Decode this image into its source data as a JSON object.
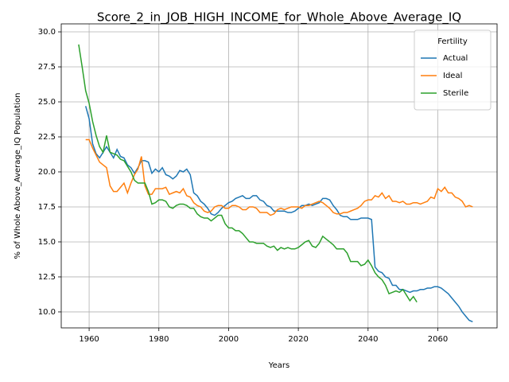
{
  "chart_data": {
    "type": "line",
    "title": "Score_2_in_JOB_HIGH_INCOME_for_Whole_Above_Average_IQ",
    "xlabel": "Years",
    "ylabel": "% of Whole Above_Average_IQ Population",
    "legend_title": "Fertility",
    "legend": "upper right",
    "grid": true,
    "x": [
      1957,
      1958,
      1959,
      1960,
      1961,
      1962,
      1963,
      1964,
      1965,
      1966,
      1967,
      1968,
      1969,
      1970,
      1971,
      1972,
      1973,
      1974,
      1975,
      1976,
      1977,
      1978,
      1979,
      1980,
      1981,
      1982,
      1983,
      1984,
      1985,
      1986,
      1987,
      1988,
      1989,
      1990,
      1991,
      1992,
      1993,
      1994,
      1995,
      1996,
      1997,
      1998,
      1999,
      2000,
      2001,
      2002,
      2003,
      2004,
      2005,
      2006,
      2007,
      2008,
      2009,
      2010,
      2011,
      2012,
      2013,
      2014,
      2015,
      2016,
      2017,
      2018,
      2019,
      2020,
      2021,
      2022,
      2023,
      2024,
      2025,
      2026,
      2027,
      2028,
      2029,
      2030,
      2031,
      2032,
      2033,
      2034,
      2035,
      2036,
      2037,
      2038,
      2039,
      2040,
      2041,
      2042,
      2043,
      2044,
      2045,
      2046,
      2047,
      2048,
      2049,
      2050,
      2051,
      2052,
      2053,
      2054,
      2055,
      2056,
      2057,
      2058,
      2059,
      2060,
      2061,
      2062,
      2063,
      2064,
      2065,
      2066,
      2067,
      2068,
      2069,
      2070
    ],
    "series": [
      {
        "name": "Actual",
        "color": "#1f77b4",
        "values": [
          null,
          null,
          24.7,
          23.8,
          22.0,
          21.3,
          21.0,
          21.4,
          21.8,
          21.4,
          21.0,
          21.6,
          21.1,
          21.0,
          20.5,
          20.3,
          19.9,
          20.3,
          20.8,
          20.8,
          20.7,
          19.9,
          20.2,
          20.0,
          20.3,
          19.8,
          19.7,
          19.5,
          19.7,
          20.1,
          20.0,
          20.2,
          19.8,
          18.5,
          18.3,
          17.9,
          17.7,
          17.4,
          17.0,
          16.9,
          17.1,
          17.4,
          17.6,
          17.8,
          17.9,
          18.1,
          18.2,
          18.3,
          18.1,
          18.1,
          18.3,
          18.3,
          18.0,
          17.9,
          17.6,
          17.5,
          17.2,
          17.2,
          17.2,
          17.2,
          17.1,
          17.1,
          17.2,
          17.4,
          17.6,
          17.6,
          17.7,
          17.6,
          17.7,
          17.8,
          18.1,
          18.1,
          18.0,
          17.6,
          17.3,
          16.9,
          16.8,
          16.8,
          16.6,
          16.6,
          16.6,
          16.7,
          16.7,
          16.7,
          16.6,
          13.2,
          12.9,
          12.8,
          12.5,
          12.4,
          11.9,
          11.9,
          11.6,
          11.6,
          11.5,
          11.4,
          11.5,
          11.5,
          11.6,
          11.6,
          11.7,
          11.7,
          11.8,
          11.8,
          11.7,
          11.5,
          11.3,
          11.0,
          10.7,
          10.4,
          10.0,
          9.7,
          9.4,
          9.3
        ]
      },
      {
        "name": "Ideal",
        "color": "#ff7f0e",
        "values": [
          null,
          null,
          22.3,
          22.3,
          21.7,
          21.2,
          20.7,
          20.5,
          20.3,
          19.0,
          18.6,
          18.6,
          18.9,
          19.2,
          18.5,
          19.2,
          19.8,
          20.2,
          21.1,
          19.0,
          18.4,
          18.4,
          18.8,
          18.8,
          18.8,
          18.9,
          18.4,
          18.5,
          18.6,
          18.5,
          18.8,
          18.3,
          18.2,
          17.8,
          17.6,
          17.5,
          17.2,
          17.1,
          17.2,
          17.5,
          17.6,
          17.6,
          17.4,
          17.4,
          17.6,
          17.6,
          17.5,
          17.3,
          17.3,
          17.5,
          17.5,
          17.4,
          17.1,
          17.1,
          17.1,
          16.9,
          17.0,
          17.3,
          17.4,
          17.3,
          17.4,
          17.5,
          17.5,
          17.5,
          17.4,
          17.6,
          17.6,
          17.7,
          17.8,
          17.9,
          17.8,
          17.6,
          17.4,
          17.1,
          17.0,
          17.0,
          17.1,
          17.1,
          17.2,
          17.3,
          17.4,
          17.6,
          17.9,
          18.0,
          18.0,
          18.3,
          18.2,
          18.5,
          18.1,
          18.3,
          17.9,
          17.9,
          17.8,
          17.9,
          17.7,
          17.7,
          17.8,
          17.8,
          17.7,
          17.8,
          17.9,
          18.2,
          18.1,
          18.8,
          18.6,
          18.9,
          18.5,
          18.5,
          18.2,
          18.1,
          17.9,
          17.5,
          17.6,
          17.5
        ]
      },
      {
        "name": "Sterile",
        "color": "#2ca02c",
        "values": [
          29.1,
          27.5,
          25.8,
          24.9,
          23.6,
          22.6,
          21.8,
          21.4,
          22.6,
          21.4,
          21.3,
          21.2,
          20.9,
          20.8,
          20.4,
          20.0,
          19.4,
          19.2,
          19.2,
          19.2,
          18.6,
          17.7,
          17.8,
          18.0,
          18.0,
          17.9,
          17.5,
          17.4,
          17.6,
          17.7,
          17.7,
          17.6,
          17.4,
          17.4,
          17.0,
          16.8,
          16.7,
          16.7,
          16.5,
          16.7,
          16.9,
          16.9,
          16.3,
          16.0,
          16.0,
          15.8,
          15.8,
          15.6,
          15.3,
          15.0,
          15.0,
          14.9,
          14.9,
          14.9,
          14.7,
          14.6,
          14.7,
          14.4,
          14.6,
          14.5,
          14.6,
          14.5,
          14.5,
          14.6,
          14.8,
          15.0,
          15.1,
          14.7,
          14.6,
          14.9,
          15.4,
          15.2,
          15.0,
          14.8,
          14.5,
          14.5,
          14.5,
          14.2,
          13.6,
          13.6,
          13.6,
          13.3,
          13.4,
          13.7,
          13.3,
          12.8,
          12.5,
          12.3,
          11.9,
          11.3,
          11.4,
          11.5,
          11.4,
          11.6,
          11.2,
          10.8,
          11.1,
          10.7,
          null,
          null,
          null,
          null,
          null,
          null,
          null,
          null,
          null,
          null,
          null,
          null,
          null,
          null,
          null,
          null
        ]
      }
    ],
    "xlim": [
      1952,
      2077
    ],
    "xticks": [
      1960,
      1980,
      2000,
      2020,
      2040,
      2060
    ],
    "ylim": [
      8.86,
      30.57
    ],
    "yticks": [
      {
        "value": 10,
        "label": "10.0"
      },
      12.5,
      {
        "value": 15,
        "label": "15.0"
      },
      17.5,
      {
        "value": 20,
        "label": "20.0"
      },
      22.5,
      {
        "value": 25,
        "label": "25.0"
      },
      27.5,
      {
        "value": 30,
        "label": "30.0"
      }
    ]
  }
}
